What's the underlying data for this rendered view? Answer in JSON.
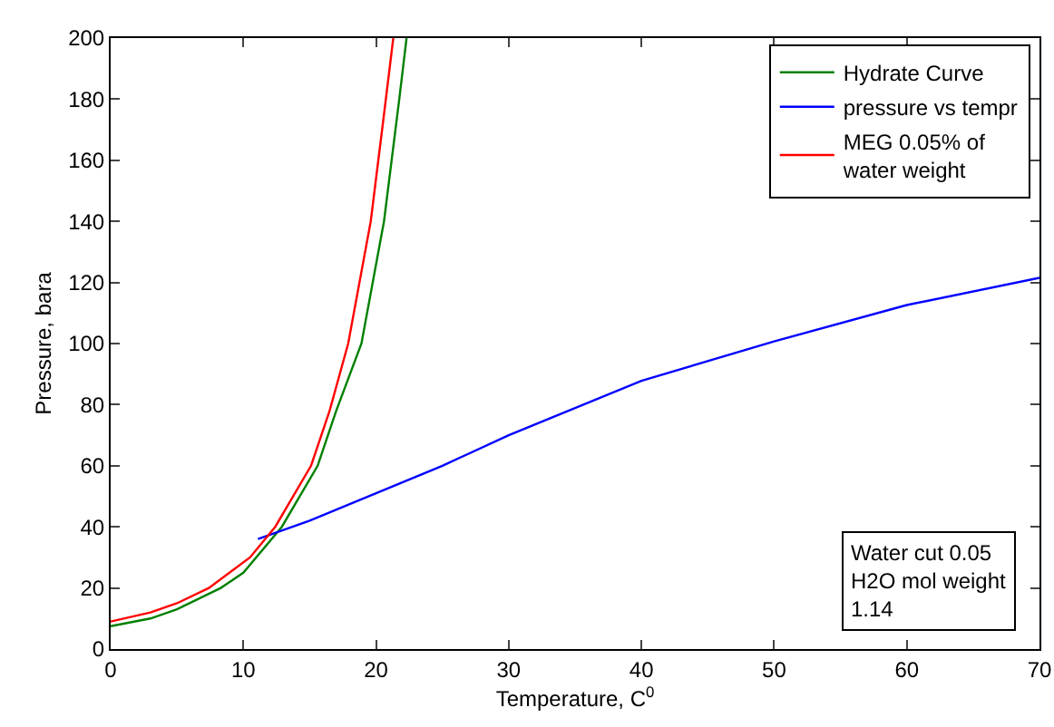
{
  "chart_data": {
    "type": "line",
    "xlabel": "Temperature, C$^{0}$",
    "ylabel": "Pressure, bara",
    "xlim": [
      0,
      70
    ],
    "ylim": [
      0,
      200
    ],
    "xticks": [
      0,
      10,
      20,
      30,
      40,
      50,
      60,
      70
    ],
    "yticks": [
      0,
      20,
      40,
      60,
      80,
      100,
      120,
      140,
      160,
      180,
      200
    ],
    "grid": false,
    "legend": "top right",
    "marker": "none",
    "line_style": "solid",
    "series": [
      {
        "name": "Hydrate Curve",
        "color": "#008000",
        "x": [
          0,
          3,
          5,
          8.3,
          10,
          12.9,
          15.6,
          17,
          18.9,
          20.6,
          21.75,
          22.3
        ],
        "values": [
          7.5,
          10,
          13,
          20,
          25,
          40,
          60,
          78,
          100,
          140,
          180,
          200
        ]
      },
      {
        "name": "pressure vs tempr",
        "color": "#0000ff",
        "x": [
          11.1,
          15,
          20,
          25,
          30,
          40,
          50,
          60,
          70
        ],
        "values": [
          36,
          42,
          51,
          60,
          70,
          87.8,
          100.7,
          112.6,
          121.5
        ]
      },
      {
        "name": "MEG 0.05% of\nwater weight",
        "color": "#ff0000",
        "x": [
          0,
          3,
          5,
          7.4,
          10.5,
          12.4,
          15.1,
          16.5,
          17.9,
          19.6,
          20.6,
          21.3
        ],
        "values": [
          9,
          12,
          15,
          20,
          30,
          40,
          60,
          78,
          100,
          140,
          175,
          200
        ]
      }
    ],
    "annotations": [
      "Water cut 0.05\nH2O mol weight\n1.14"
    ]
  }
}
